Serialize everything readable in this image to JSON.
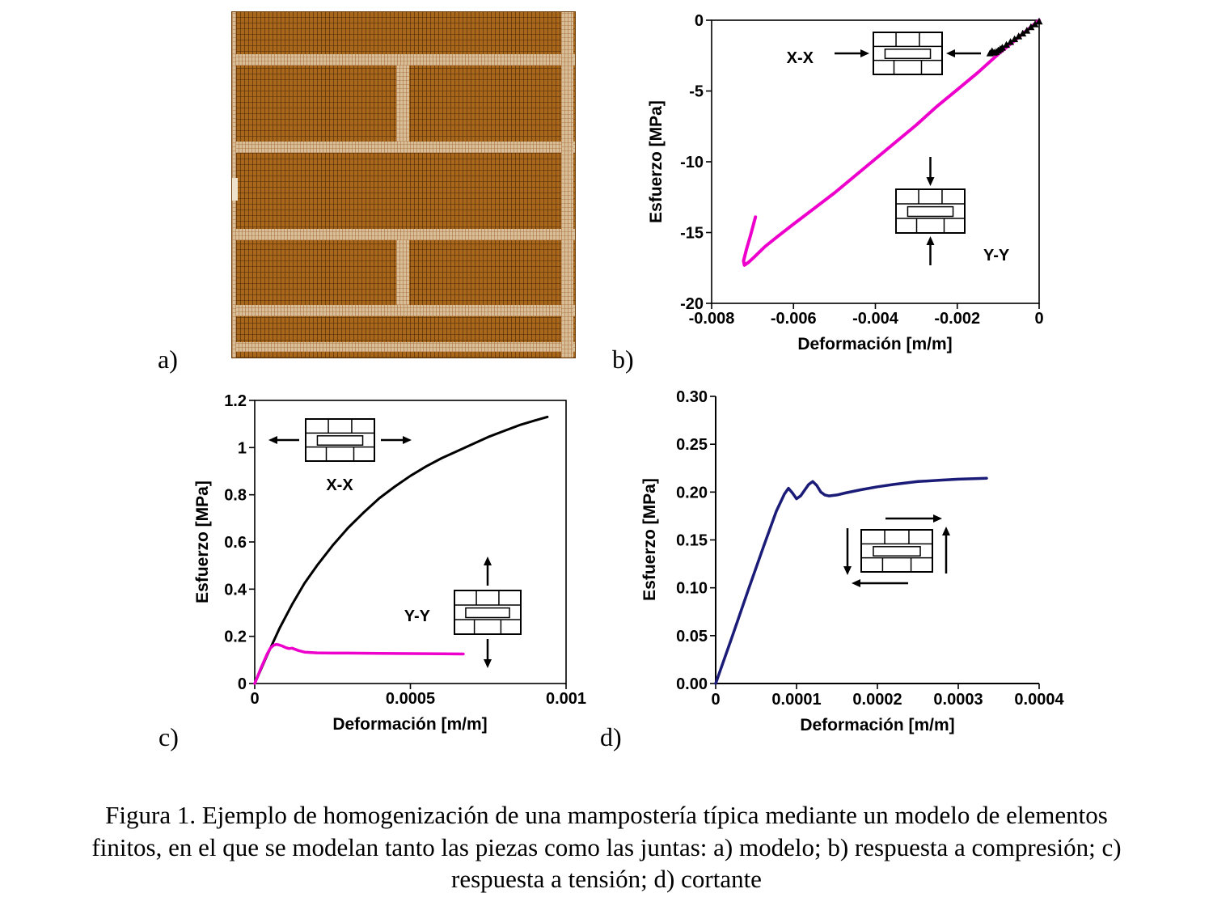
{
  "figure": {
    "panel_labels": {
      "a": "a)",
      "b": "b)",
      "c": "c)",
      "d": "d)"
    },
    "caption_lines": [
      "Figura 1. Ejemplo de homogenización de una mampostería típica mediante un modelo de elementos",
      "finitos, en el que se modelan tanto las piezas como las juntas: a) modelo; b) respuesta a compresión; c)",
      "respuesta a tensión; d) cortante"
    ]
  },
  "model_image": {
    "description": "malla de elementos finitos de mampostería (piezas y juntas)",
    "brick_color": "#A9671C",
    "mortar_color": "#D9BF99"
  },
  "chart_data": [
    {
      "id": "b",
      "panel": "b",
      "type": "line",
      "title": "respuesta a compresión",
      "xlabel": "Deformación [m/m]",
      "ylabel": "Esfuerzo [MPa]",
      "xlim": [
        -0.008,
        0
      ],
      "ylim": [
        -20,
        0
      ],
      "xticks": [
        -0.008,
        -0.006,
        -0.004,
        -0.002,
        0
      ],
      "xtick_labels": [
        "-0.008",
        "-0.006",
        "-0.004",
        "-0.002",
        "0"
      ],
      "yticks": [
        0,
        -5,
        -10,
        -15,
        -20
      ],
      "ytick_labels": [
        "0",
        "-5",
        "-10",
        "-15",
        "-20"
      ],
      "box": true,
      "series": [
        {
          "name": "compresión Y-Y",
          "color": "#EE00CC",
          "width": 4,
          "marker": "none",
          "x": [
            0,
            -0.0005,
            -0.001,
            -0.0015,
            -0.002,
            -0.0025,
            -0.003,
            -0.0035,
            -0.004,
            -0.0045,
            -0.005,
            -0.0055,
            -0.006,
            -0.0064,
            -0.0067,
            -0.00695,
            -0.0071,
            -0.0072,
            -0.00722,
            -0.00715,
            -0.00705,
            -0.00693
          ],
          "y": [
            0,
            -1.2,
            -2.4,
            -3.7,
            -4.9,
            -6.1,
            -7.4,
            -8.6,
            -9.8,
            -11.0,
            -12.2,
            -13.3,
            -14.4,
            -15.3,
            -16.0,
            -16.7,
            -17.1,
            -17.3,
            -17.0,
            -16.2,
            -15.2,
            -13.9
          ]
        },
        {
          "name": "compresión X-X",
          "color": "#000000",
          "width": 2.5,
          "marker": "triangle",
          "x": [
            0,
            -0.0001,
            -0.0002,
            -0.0003,
            -0.0004,
            -0.0005,
            -0.0006,
            -0.0007,
            -0.0008,
            -0.0009,
            -0.00095,
            -0.001,
            -0.00105,
            -0.0011,
            -0.00115,
            -0.0012
          ],
          "y": [
            -0.1,
            -0.3,
            -0.5,
            -0.75,
            -0.95,
            -1.15,
            -1.35,
            -1.55,
            -1.75,
            -1.95,
            -2.05,
            -2.15,
            -2.25,
            -2.3,
            -2.2,
            -2.35
          ]
        }
      ],
      "annotations": [
        {
          "text": "X-X"
        },
        {
          "text": "Y-Y"
        }
      ]
    },
    {
      "id": "c",
      "panel": "c",
      "type": "line",
      "title": "respuesta a tensión",
      "xlabel": "Deformación [m/m]",
      "ylabel": "Esfuerzo [MPa]",
      "xlim": [
        0,
        0.001
      ],
      "ylim": [
        0,
        1.2
      ],
      "xticks": [
        0,
        0.0005,
        0.001
      ],
      "xtick_labels": [
        "0",
        "0.0005",
        "0.001"
      ],
      "yticks": [
        0,
        0.2,
        0.4,
        0.6,
        0.8,
        1.0,
        1.2
      ],
      "ytick_labels": [
        "0",
        "0.2",
        "0.4",
        "0.6",
        "0.8",
        "1",
        "1.2"
      ],
      "box": true,
      "series": [
        {
          "name": "tensión X-X",
          "color": "#000000",
          "width": 3,
          "marker": "none",
          "x": [
            0,
            4e-05,
            8e-05,
            0.00012,
            0.00016,
            0.0002,
            0.00025,
            0.0003,
            0.00035,
            0.0004,
            0.00045,
            0.0005,
            0.00055,
            0.0006,
            0.00065,
            0.0007,
            0.00075,
            0.0008,
            0.00085,
            0.0009,
            0.00094
          ],
          "y": [
            0,
            0.12,
            0.235,
            0.335,
            0.425,
            0.5,
            0.585,
            0.66,
            0.725,
            0.785,
            0.835,
            0.88,
            0.92,
            0.955,
            0.985,
            1.015,
            1.045,
            1.07,
            1.095,
            1.115,
            1.13
          ]
        },
        {
          "name": "tensión Y-Y",
          "color": "#EE00CC",
          "width": 3.5,
          "marker": "none",
          "x": [
            0,
            2e-05,
            4e-05,
            5e-05,
            6e-05,
            7e-05,
            8e-05,
            9e-05,
            0.0001,
            0.00011,
            0.00012,
            0.00014,
            0.00016,
            0.0002,
            0.00025,
            0.0003,
            0.0004,
            0.0005,
            0.0006,
            0.00067
          ],
          "y": [
            0,
            0.065,
            0.125,
            0.15,
            0.162,
            0.166,
            0.163,
            0.158,
            0.152,
            0.148,
            0.15,
            0.14,
            0.133,
            0.13,
            0.129,
            0.129,
            0.128,
            0.127,
            0.126,
            0.125
          ]
        }
      ],
      "annotations": [
        {
          "text": "X-X"
        },
        {
          "text": "Y-Y"
        }
      ]
    },
    {
      "id": "d",
      "panel": "d",
      "type": "line",
      "title": "cortante",
      "xlabel": "Deformación [m/m]",
      "ylabel": "Esfuerzo [MPa]",
      "xlim": [
        0,
        0.0004
      ],
      "ylim": [
        0,
        0.3
      ],
      "xticks": [
        0,
        0.0001,
        0.0002,
        0.0003,
        0.0004
      ],
      "xtick_labels": [
        "0",
        "0.0001",
        "0.0002",
        "0.0003",
        "0.0004"
      ],
      "yticks": [
        0,
        0.05,
        0.1,
        0.15,
        0.2,
        0.25,
        0.3
      ],
      "ytick_labels": [
        "0.00",
        "0.05",
        "0.10",
        "0.15",
        "0.20",
        "0.25",
        "0.30"
      ],
      "box": false,
      "series": [
        {
          "name": "cortante",
          "color": "#1B1B78",
          "width": 3.5,
          "marker": "none",
          "x": [
            0,
            2e-05,
            4e-05,
            6e-05,
            7.5e-05,
            8.5e-05,
            9e-05,
            9.5e-05,
            0.0001,
            0.000105,
            0.00011,
            0.000115,
            0.00012,
            0.000125,
            0.00013,
            0.000135,
            0.00014,
            0.00015,
            0.00016,
            0.00018,
            0.0002,
            0.00022,
            0.00025,
            0.00028,
            0.0003,
            0.00032,
            0.000335
          ],
          "y": [
            0,
            0.048,
            0.097,
            0.145,
            0.18,
            0.198,
            0.204,
            0.199,
            0.193,
            0.196,
            0.202,
            0.208,
            0.211,
            0.207,
            0.2,
            0.197,
            0.196,
            0.197,
            0.199,
            0.2025,
            0.2055,
            0.208,
            0.211,
            0.2125,
            0.2135,
            0.214,
            0.2145
          ]
        }
      ],
      "annotations": []
    }
  ]
}
